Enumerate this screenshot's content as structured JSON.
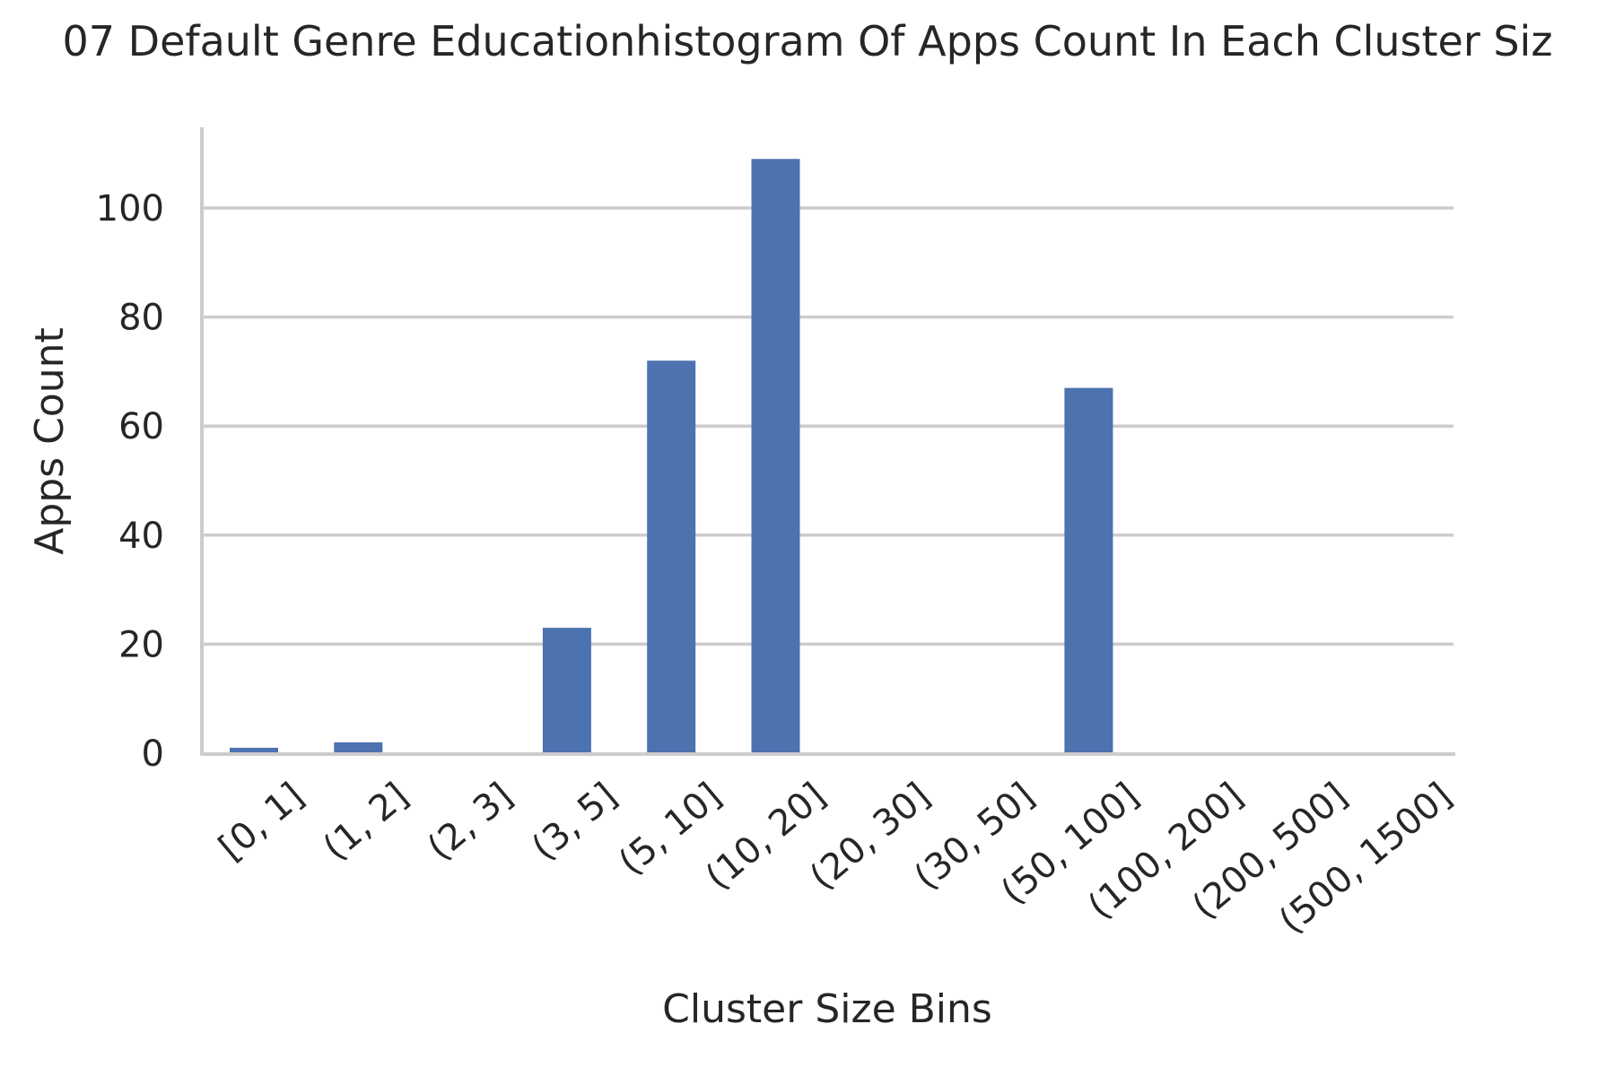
{
  "chart_data": {
    "type": "bar",
    "title": "07 Default Genre Educationhistogram Of Apps Count In Each Cluster Siz",
    "xlabel": "Cluster Size Bins",
    "ylabel": "Apps Count",
    "categories": [
      "[0, 1]",
      "(1, 2]",
      "(2, 3]",
      "(3, 5]",
      "(5, 10]",
      "(10, 20]",
      "(20, 30]",
      "(30, 50]",
      "(50, 100]",
      "(100, 200]",
      "(200, 500]",
      "(500, 1500]"
    ],
    "values": [
      1,
      2,
      0,
      23,
      72,
      109,
      0,
      0,
      67,
      0,
      0,
      0
    ],
    "ylim": [
      0,
      115
    ],
    "yticks": [
      0,
      20,
      40,
      60,
      80,
      100
    ],
    "grid": true,
    "legend": "none",
    "colors": {
      "bar": "#4c72b0",
      "grid": "#cccccc",
      "text": "#262626"
    }
  }
}
